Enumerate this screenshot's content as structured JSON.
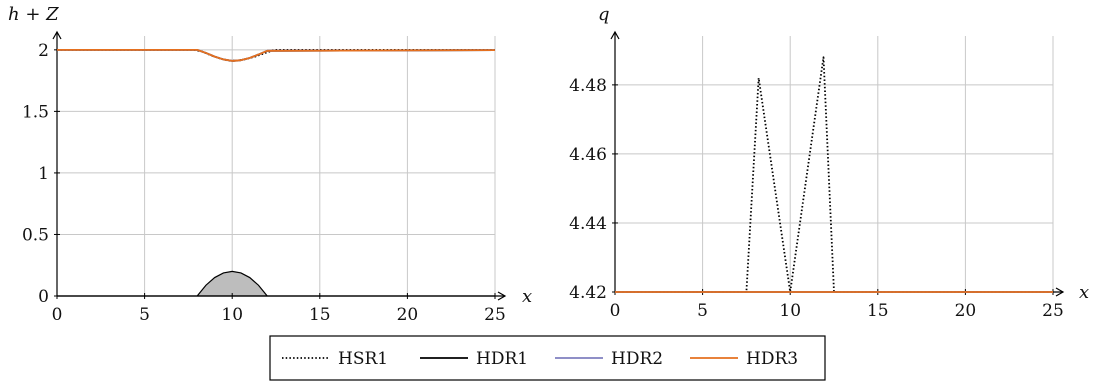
{
  "chart_data": [
    {
      "type": "line",
      "xlabel": "x",
      "ylabel": "h + Z",
      "xlim": [
        0,
        25
      ],
      "ylim": [
        0,
        2.08
      ],
      "xticks": [
        0,
        5,
        10,
        15,
        20,
        25
      ],
      "yticks": [
        0,
        0.5,
        1,
        1.5,
        2
      ],
      "ytick_labels": [
        "0",
        "0.5",
        "1",
        "1.5",
        "2"
      ],
      "grid": true,
      "bump": {
        "fill_color": "#bdbdbd",
        "x": [
          0,
          8,
          8.5,
          9,
          9.5,
          10,
          10.5,
          11,
          11.5,
          12,
          25
        ],
        "y": [
          0,
          0,
          0.0875,
          0.15,
          0.1875,
          0.2,
          0.1875,
          0.15,
          0.0875,
          0,
          0
        ]
      },
      "series": [
        {
          "name": "HSR1",
          "color": "#000000",
          "dash": "dotted",
          "x": [
            0,
            7.8,
            8.3,
            8.8,
            9.3,
            9.8,
            10.3,
            10.8,
            11.3,
            11.8,
            12.4,
            25
          ],
          "y": [
            2.0,
            2.0,
            1.985,
            1.955,
            1.93,
            1.912,
            1.912,
            1.925,
            1.945,
            1.97,
            2.0,
            2.0
          ]
        },
        {
          "name": "HDR1",
          "color": "#000000",
          "dash": "solid",
          "x": [
            0,
            8,
            8.5,
            9,
            9.5,
            10,
            10.5,
            11,
            11.5,
            12,
            25
          ],
          "y": [
            2.0,
            2.0,
            1.975,
            1.945,
            1.922,
            1.91,
            1.916,
            1.934,
            1.962,
            1.992,
            1.998
          ]
        },
        {
          "name": "HDR2",
          "color": "#7f7fbf",
          "dash": "solid",
          "x": [
            0,
            8,
            8.5,
            9,
            9.5,
            10,
            10.5,
            11,
            11.5,
            12,
            25
          ],
          "y": [
            2.0,
            2.0,
            1.975,
            1.945,
            1.922,
            1.91,
            1.916,
            1.934,
            1.962,
            1.992,
            1.998
          ]
        },
        {
          "name": "HDR3",
          "color": "#e5701f",
          "dash": "solid",
          "x": [
            0,
            8,
            8.5,
            9,
            9.5,
            10,
            10.5,
            11,
            11.5,
            12,
            25
          ],
          "y": [
            2.0,
            2.0,
            1.975,
            1.945,
            1.922,
            1.91,
            1.916,
            1.934,
            1.962,
            1.992,
            1.998
          ]
        }
      ]
    },
    {
      "type": "line",
      "xlabel": "x",
      "ylabel": "q",
      "xlim": [
        0,
        25
      ],
      "ylim": [
        4.42,
        4.493
      ],
      "xticks": [
        0,
        5,
        10,
        15,
        20,
        25
      ],
      "yticks": [
        4.42,
        4.44,
        4.46,
        4.48
      ],
      "ytick_labels": [
        "4.42",
        "4.44",
        "4.46",
        "4.48"
      ],
      "grid": true,
      "series": [
        {
          "name": "HSR1",
          "color": "#000000",
          "dash": "dotted",
          "x": [
            0,
            7.5,
            8.2,
            10.0,
            11.9,
            12.5,
            25
          ],
          "y": [
            4.42,
            4.42,
            4.482,
            4.42,
            4.488,
            4.42,
            4.42
          ]
        },
        {
          "name": "HDR1",
          "color": "#000000",
          "dash": "solid",
          "x": [
            0,
            25
          ],
          "y": [
            4.42,
            4.42
          ]
        },
        {
          "name": "HDR2",
          "color": "#7f7fbf",
          "dash": "solid",
          "x": [
            0,
            25
          ],
          "y": [
            4.42,
            4.42
          ]
        },
        {
          "name": "HDR3",
          "color": "#e5701f",
          "dash": "solid",
          "x": [
            0,
            25
          ],
          "y": [
            4.42,
            4.42
          ]
        }
      ]
    }
  ],
  "legend": {
    "placement": "bottom-center",
    "entries": [
      "HSR1",
      "HDR1",
      "HDR2",
      "HDR3"
    ]
  }
}
